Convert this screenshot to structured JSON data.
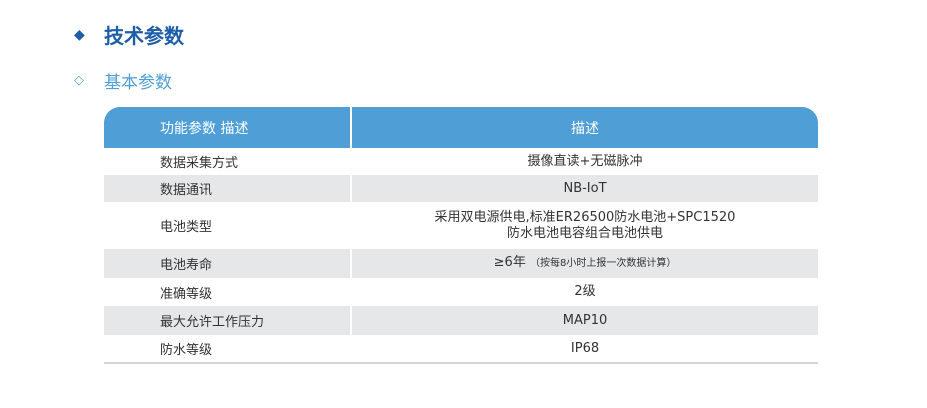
{
  "section": {
    "icon": "filled-diamond-icon",
    "title": "技术参数"
  },
  "subsection": {
    "icon": "outline-diamond-icon",
    "title": "基本参数"
  },
  "table": {
    "headers": [
      "功能参数 描述",
      "描述"
    ],
    "rows": [
      {
        "param": "数据采集方式",
        "desc": "摄像直读+无磁脉冲"
      },
      {
        "param": "数据通讯",
        "desc": "NB-IoT"
      },
      {
        "param": "电池类型",
        "desc": "采用双电源供电,标准ER26500防水电池+SPC1520",
        "desc2": "防水电池电容组合电池供电"
      },
      {
        "param": "电池寿命",
        "desc": "≥6年",
        "note": "（按每8小时上报一次数据计算）"
      },
      {
        "param": "准确等级",
        "desc": "2级"
      },
      {
        "param": "最大允许工作压力",
        "desc": "MAP10"
      },
      {
        "param": "防水等级",
        "desc": "IP68"
      }
    ]
  },
  "colors": {
    "primary": "#1d5ea8",
    "header": "#4f9fd6",
    "stripe": "#e6e7e9"
  }
}
